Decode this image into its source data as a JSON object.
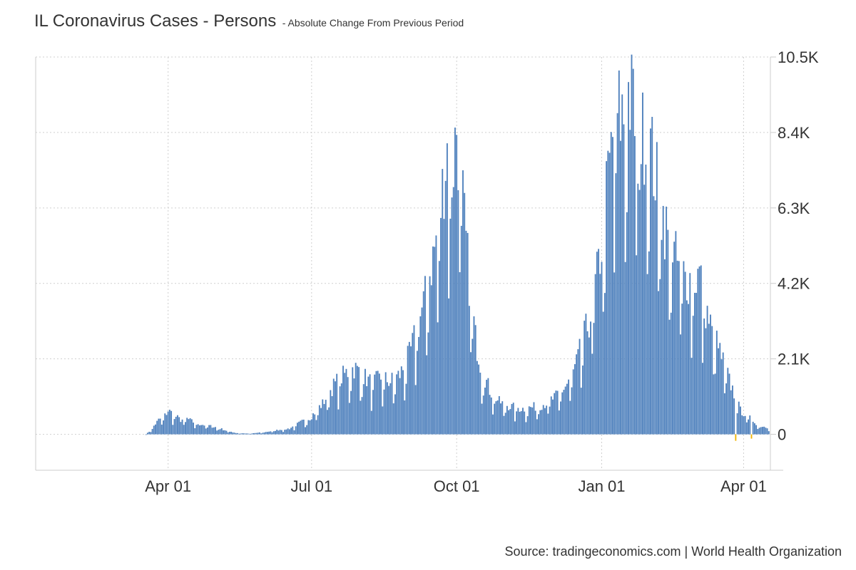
{
  "chart_data": {
    "type": "bar",
    "title": "IL Coronavirus Cases - Persons",
    "subtitle": "- Absolute Change From Previous Period",
    "x_tick_labels": [
      "Apr 01",
      "Jul 01",
      "Oct 01",
      "Jan 01",
      "Apr 01"
    ],
    "x_tick_dates": [
      "2020-04-01",
      "2020-07-01",
      "2020-10-01",
      "2021-01-01",
      "2021-04-01"
    ],
    "x_range": [
      "2020-01-08",
      "2021-04-18"
    ],
    "y_tick_labels": [
      "0",
      "2.1K",
      "4.2K",
      "6.3K",
      "8.4K",
      "10.5K"
    ],
    "y_ticks": [
      0,
      2100,
      4200,
      6300,
      8400,
      10500
    ],
    "ylim": [
      -1000,
      10500
    ],
    "grid": true,
    "y_axis_side": "right",
    "colors": {
      "positive": "#4f81bd",
      "negative": "#f0b400"
    },
    "anchors": [
      [
        "2020-03-18",
        0
      ],
      [
        "2020-03-20",
        80
      ],
      [
        "2020-03-23",
        250
      ],
      [
        "2020-03-26",
        420
      ],
      [
        "2020-03-30",
        550
      ],
      [
        "2020-04-01",
        700
      ],
      [
        "2020-04-03",
        640
      ],
      [
        "2020-04-06",
        520
      ],
      [
        "2020-04-09",
        420
      ],
      [
        "2020-04-13",
        460
      ],
      [
        "2020-04-17",
        360
      ],
      [
        "2020-04-21",
        300
      ],
      [
        "2020-04-26",
        260
      ],
      [
        "2020-05-02",
        200
      ],
      [
        "2020-05-08",
        110
      ],
      [
        "2020-05-14",
        40
      ],
      [
        "2020-05-22",
        20
      ],
      [
        "2020-06-01",
        60
      ],
      [
        "2020-06-10",
        130
      ],
      [
        "2020-06-17",
        170
      ],
      [
        "2020-06-24",
        350
      ],
      [
        "2020-06-30",
        480
      ],
      [
        "2020-07-04",
        700
      ],
      [
        "2020-07-08",
        900
      ],
      [
        "2020-07-13",
        1300
      ],
      [
        "2020-07-18",
        1600
      ],
      [
        "2020-07-23",
        1800
      ],
      [
        "2020-07-28",
        1950
      ],
      [
        "2020-08-02",
        1750
      ],
      [
        "2020-08-08",
        1500
      ],
      [
        "2020-08-14",
        1650
      ],
      [
        "2020-08-20",
        1550
      ],
      [
        "2020-08-26",
        1750
      ],
      [
        "2020-09-01",
        2300
      ],
      [
        "2020-09-06",
        3100
      ],
      [
        "2020-09-11",
        4000
      ],
      [
        "2020-09-16",
        5200
      ],
      [
        "2020-09-20",
        6200
      ],
      [
        "2020-09-23",
        7600
      ],
      [
        "2020-09-25",
        8400
      ],
      [
        "2020-09-28",
        7500
      ],
      [
        "2020-10-01",
        9000
      ],
      [
        "2020-10-04",
        7300
      ],
      [
        "2020-10-07",
        5600
      ],
      [
        "2020-10-10",
        4000
      ],
      [
        "2020-10-13",
        2800
      ],
      [
        "2020-10-17",
        1900
      ],
      [
        "2020-10-22",
        1300
      ],
      [
        "2020-10-28",
        950
      ],
      [
        "2020-11-05",
        800
      ],
      [
        "2020-11-12",
        750
      ],
      [
        "2020-11-19",
        800
      ],
      [
        "2020-11-26",
        900
      ],
      [
        "2020-12-03",
        1100
      ],
      [
        "2020-12-09",
        1400
      ],
      [
        "2020-12-15",
        1900
      ],
      [
        "2020-12-20",
        2700
      ],
      [
        "2020-12-25",
        3500
      ],
      [
        "2020-12-29",
        4600
      ],
      [
        "2021-01-02",
        5900
      ],
      [
        "2021-01-05",
        7500
      ],
      [
        "2021-01-08",
        8600
      ],
      [
        "2021-01-12",
        9400
      ],
      [
        "2021-01-15",
        9300
      ],
      [
        "2021-01-18",
        10000
      ],
      [
        "2021-01-21",
        9600
      ],
      [
        "2021-01-25",
        8300
      ],
      [
        "2021-01-29",
        9100
      ],
      [
        "2021-02-03",
        7900
      ],
      [
        "2021-02-08",
        6600
      ],
      [
        "2021-02-13",
        5600
      ],
      [
        "2021-02-18",
        5000
      ],
      [
        "2021-02-23",
        4600
      ],
      [
        "2021-02-28",
        4500
      ],
      [
        "2021-03-04",
        4700
      ],
      [
        "2021-03-08",
        3700
      ],
      [
        "2021-03-12",
        3000
      ],
      [
        "2021-03-17",
        2400
      ],
      [
        "2021-03-22",
        1700
      ],
      [
        "2021-03-26",
        1200
      ],
      [
        "2021-03-30",
        700
      ],
      [
        "2021-04-03",
        550
      ],
      [
        "2021-04-07",
        400
      ],
      [
        "2021-04-11",
        250
      ],
      [
        "2021-04-17",
        200
      ]
    ],
    "negative_points": [
      [
        "2021-03-27",
        -180
      ],
      [
        "2021-04-06",
        -120
      ]
    ]
  },
  "source": "Source: tradingeconomics.com | World Health Organization"
}
